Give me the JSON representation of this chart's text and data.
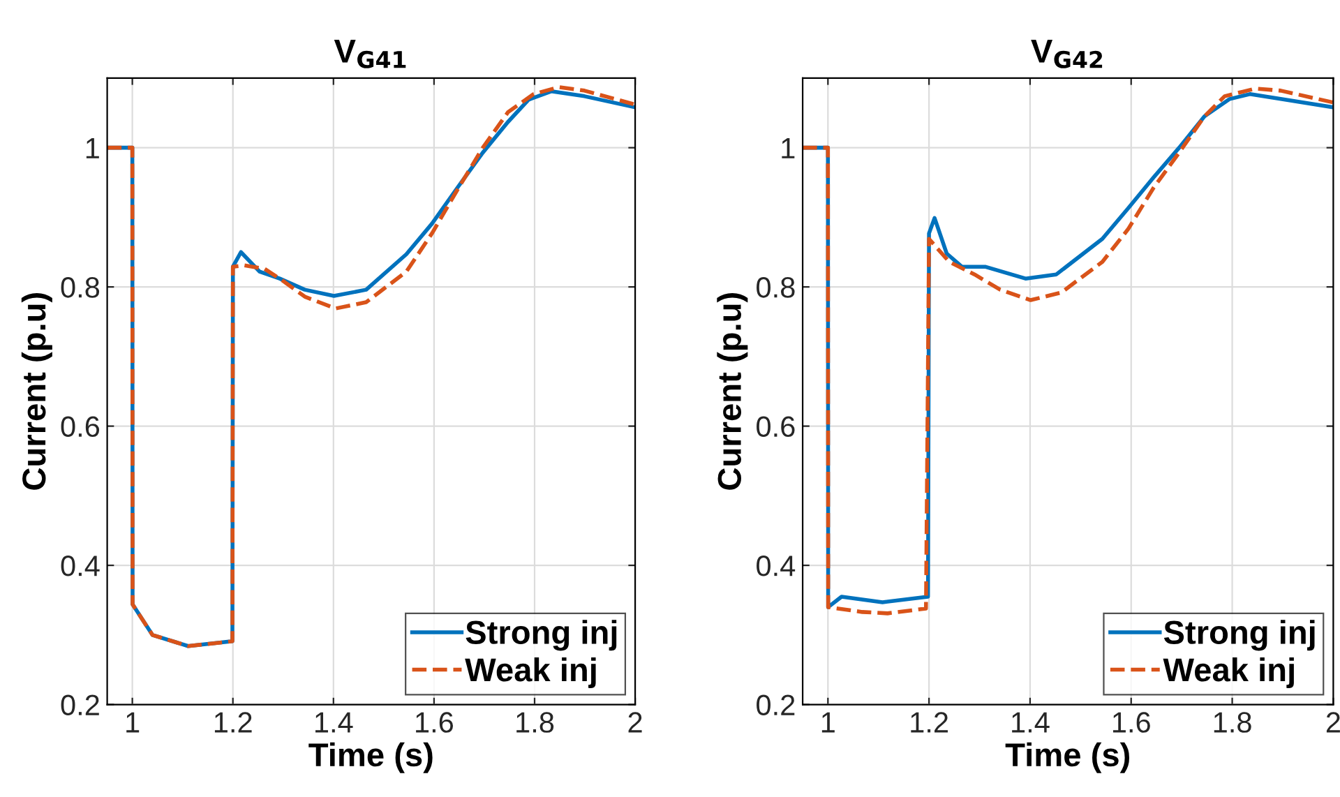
{
  "chart_data": [
    {
      "type": "line",
      "title": "V$_{G41}$",
      "xlabel": "Time (s)",
      "ylabel": "Current (p.u)",
      "xlim": [
        0.95,
        2
      ],
      "ylim": [
        0.2,
        1.1
      ],
      "xticks": [
        1,
        1.2,
        1.4,
        1.6,
        1.8,
        2
      ],
      "yticks": [
        0.2,
        0.4,
        0.6,
        0.8,
        1
      ],
      "grid": true,
      "legend": "bottom right",
      "series": [
        {
          "name": "Strong inj",
          "color": "#0072bd",
          "line_style": "solid",
          "x": [
            0.95,
            1.0,
            1.0005,
            1.04,
            1.111,
            1.199,
            1.2,
            1.216,
            1.253,
            1.293,
            1.343,
            1.401,
            1.465,
            1.545,
            1.596,
            1.646,
            1.697,
            1.747,
            1.788,
            1.833,
            1.899,
            2.0
          ],
          "values": [
            1,
            1,
            0.344,
            0.3,
            0.284,
            0.291,
            0.829,
            0.85,
            0.822,
            0.812,
            0.796,
            0.787,
            0.796,
            0.847,
            0.891,
            0.942,
            0.993,
            1.037,
            1.069,
            1.081,
            1.074,
            1.058
          ]
        },
        {
          "name": "Weak inj",
          "color": "#d95319",
          "line_style": "dashed",
          "x": [
            0.95,
            1.0,
            1.0005,
            1.04,
            1.111,
            1.199,
            1.2,
            1.222,
            1.263,
            1.303,
            1.343,
            1.404,
            1.465,
            1.545,
            1.596,
            1.646,
            1.697,
            1.747,
            1.798,
            1.848,
            1.899,
            2.0
          ],
          "values": [
            1,
            1,
            0.344,
            0.3,
            0.284,
            0.291,
            0.829,
            0.831,
            0.826,
            0.807,
            0.786,
            0.769,
            0.778,
            0.822,
            0.877,
            0.939,
            1.0,
            1.051,
            1.077,
            1.087,
            1.082,
            1.062
          ]
        }
      ]
    },
    {
      "type": "line",
      "title": "V$_{G42}$",
      "xlabel": "Time (s)",
      "ylabel": "Current (p.u)",
      "xlim": [
        0.95,
        2
      ],
      "ylim": [
        0.2,
        1.1
      ],
      "xticks": [
        1,
        1.2,
        1.4,
        1.6,
        1.8,
        2
      ],
      "yticks": [
        0.2,
        0.4,
        0.6,
        0.8,
        1
      ],
      "grid": true,
      "legend": "bottom right",
      "series": [
        {
          "name": "Strong inj",
          "color": "#0072bd",
          "line_style": "solid",
          "x": [
            0.95,
            1.0,
            1.0005,
            1.027,
            1.108,
            1.198,
            1.2,
            1.211,
            1.235,
            1.265,
            1.311,
            1.391,
            1.452,
            1.543,
            1.594,
            1.644,
            1.695,
            1.745,
            1.795,
            1.835,
            1.896,
            2.0
          ],
          "values": [
            1,
            1,
            0.34,
            0.355,
            0.347,
            0.355,
            0.877,
            0.899,
            0.848,
            0.829,
            0.829,
            0.812,
            0.818,
            0.869,
            0.913,
            0.957,
            1.0,
            1.045,
            1.07,
            1.077,
            1.07,
            1.058
          ]
        },
        {
          "name": "Weak inj",
          "color": "#d95319",
          "line_style": "dashed",
          "x": [
            0.95,
            1.0,
            1.0005,
            1.068,
            1.118,
            1.194,
            1.2,
            1.24,
            1.29,
            1.341,
            1.401,
            1.462,
            1.543,
            1.594,
            1.644,
            1.695,
            1.745,
            1.785,
            1.846,
            1.896,
            2.0
          ],
          "values": [
            1,
            1,
            0.34,
            0.333,
            0.331,
            0.338,
            0.869,
            0.836,
            0.818,
            0.796,
            0.781,
            0.792,
            0.836,
            0.883,
            0.942,
            0.993,
            1.045,
            1.074,
            1.085,
            1.082,
            1.065
          ]
        }
      ]
    }
  ]
}
